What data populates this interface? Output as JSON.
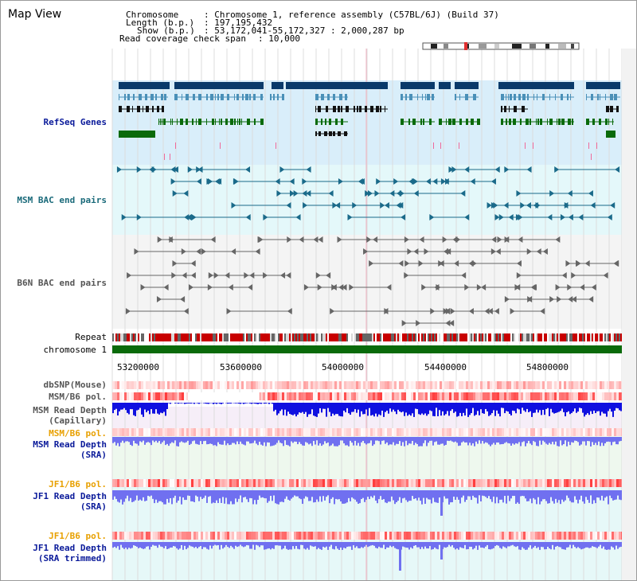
{
  "panel": {
    "title": "Map View"
  },
  "header": {
    "chromosome_key": "Chromosome",
    "chromosome_value": ": Chromosome 1, reference assembly (C57BL/6J) (Build 37)",
    "length_key": "Length (b.p.)",
    "length_value": ": 197,195,432",
    "show_key": "Show (b.p.)",
    "show_value": ": 53,172,041-55,172,327 : 2,000,287 bp",
    "coverage_key": "Read coverage check span",
    "coverage_value": ": 10,000"
  },
  "tracks": {
    "refseq": "RefSeq Genes",
    "msm_bac": "MSM BAC end pairs",
    "b6n_bac": "B6N BAC end pairs",
    "repeat": "Repeat",
    "chromosome": "chromosome 1",
    "dbsnp": "dbSNP(Mouse)",
    "msm_b6_pol": "MSM/B6 pol.",
    "msm_rd_cap_1": "MSM Read Depth",
    "msm_rd_cap_2": "(Capillary)",
    "msm_b6_pol_2": "MSM/B6 pol.",
    "msm_rd_sra_1": "MSM Read Depth",
    "msm_rd_sra_2": "(SRA)",
    "jf1_b6_pol": "JF1/B6 pol.",
    "jf1_rd_sra_1": "JF1 Read Depth",
    "jf1_rd_sra_2": "(SRA)",
    "jf1_b6_pol_2": "JF1/B6 pol.",
    "jf1_rd_trim_1": "JF1 Read Depth",
    "jf1_rd_trim_2": "(SRA trimmed)"
  },
  "axis": {
    "ticks": [
      "53200000",
      "53600000",
      "54000000",
      "54400000",
      "54800000"
    ]
  },
  "colors": {
    "refseq_bg": "#d9eefa",
    "bac_bg": "#e4f8fa",
    "gene_dark": "#0a3a6a",
    "gene_mid": "#4a90b8",
    "gene_green": "#0a6a0a",
    "chromosome": "#0a6a0a",
    "repeat_red": "#c80000",
    "depth_blue": "#1010e0",
    "depth_light": "#7070f0",
    "label_blue": "#0a1a9a",
    "label_orange": "#e8a000"
  }
}
